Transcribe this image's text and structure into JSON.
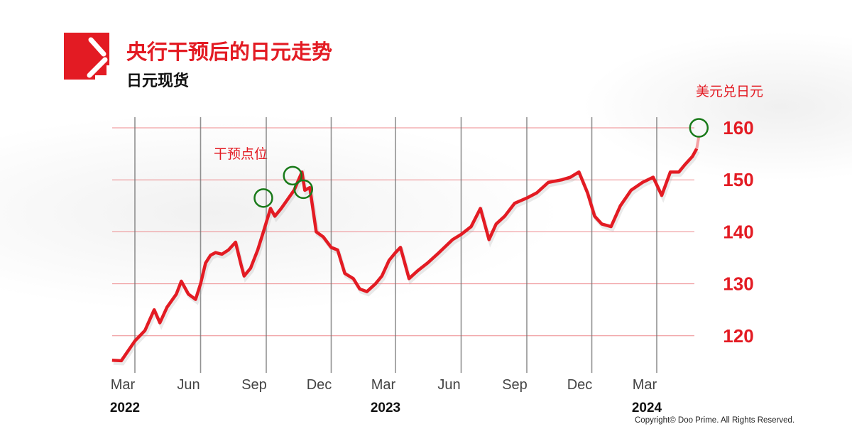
{
  "header": {
    "title": "央行干预后的日元走势",
    "subtitle": "日元现货"
  },
  "footer": {
    "copyright": "Copyright© Doo Prime. All Rights Reserved."
  },
  "colors": {
    "accent": "#e31b23",
    "marker": "#1a7a1a",
    "grid_vertical": "#666666"
  },
  "chart_data": {
    "type": "line",
    "title": "央行干预后的日元走势",
    "subtitle": "日元现货",
    "ylabel": "美元兑日元",
    "annotation": "干预点位",
    "ylim": [
      114,
      162
    ],
    "yticks": [
      120,
      130,
      140,
      150,
      160
    ],
    "xticks": [
      {
        "date": "2022-03-01",
        "label": "Mar"
      },
      {
        "date": "2022-06-01",
        "label": "Jun"
      },
      {
        "date": "2022-09-01",
        "label": "Sep"
      },
      {
        "date": "2022-12-01",
        "label": "Dec"
      },
      {
        "date": "2023-03-01",
        "label": "Mar"
      },
      {
        "date": "2023-06-01",
        "label": "Jun"
      },
      {
        "date": "2023-09-01",
        "label": "Sep"
      },
      {
        "date": "2023-12-01",
        "label": "Dec"
      },
      {
        "date": "2024-03-01",
        "label": "Mar"
      }
    ],
    "years": [
      {
        "date": "2022-03-01",
        "label": "2022"
      },
      {
        "date": "2023-03-01",
        "label": "2023"
      },
      {
        "date": "2024-03-01",
        "label": "2024"
      }
    ],
    "grid": true,
    "series": [
      {
        "x": [
          "2022-01-28",
          "2022-02-10",
          "2022-03-01",
          "2022-03-15",
          "2022-03-28",
          "2022-04-05",
          "2022-04-15",
          "2022-04-28",
          "2022-05-05",
          "2022-05-15",
          "2022-05-25",
          "2022-06-01",
          "2022-06-08",
          "2022-06-15",
          "2022-06-22",
          "2022-07-01",
          "2022-07-10",
          "2022-07-20",
          "2022-07-28",
          "2022-08-01",
          "2022-08-10",
          "2022-08-20",
          "2022-08-28",
          "2022-09-07",
          "2022-09-13",
          "2022-09-22",
          "2022-10-10",
          "2022-10-21",
          "2022-10-25",
          "2022-11-01",
          "2022-11-10",
          "2022-11-20",
          "2022-12-01",
          "2022-12-10",
          "2022-12-20",
          "2023-01-01",
          "2023-01-10",
          "2023-01-20",
          "2023-02-01",
          "2023-02-10",
          "2023-02-20",
          "2023-03-01",
          "2023-03-08",
          "2023-03-20",
          "2023-04-01",
          "2023-04-15",
          "2023-05-01",
          "2023-05-20",
          "2023-06-01",
          "2023-06-15",
          "2023-06-28",
          "2023-07-10",
          "2023-07-20",
          "2023-08-01",
          "2023-08-15",
          "2023-09-01",
          "2023-09-15",
          "2023-10-01",
          "2023-10-20",
          "2023-11-01",
          "2023-11-13",
          "2023-11-25",
          "2023-12-05",
          "2023-12-15",
          "2023-12-28",
          "2024-01-10",
          "2024-01-25",
          "2024-02-10",
          "2024-02-25",
          "2024-03-08",
          "2024-03-20",
          "2024-04-01",
          "2024-04-10",
          "2024-04-20",
          "2024-04-26"
        ],
        "y": [
          115.3,
          115.2,
          119,
          121,
          125,
          122.5,
          125.5,
          128,
          130.5,
          128,
          127,
          130,
          134,
          135.5,
          136,
          135.7,
          136.5,
          138,
          133.5,
          131.5,
          133,
          136.5,
          140,
          144.5,
          143,
          144.5,
          148,
          151.5,
          148,
          148.5,
          140,
          139,
          137,
          136.5,
          132,
          131,
          129,
          128.5,
          130,
          131.5,
          134.5,
          136,
          137,
          131,
          132.5,
          134,
          136,
          138.5,
          139.5,
          141,
          144.5,
          138.5,
          141.5,
          143,
          145.5,
          146.5,
          147.5,
          149.5,
          150,
          150.5,
          151.5,
          147.5,
          143,
          141.5,
          141,
          145,
          148,
          149.5,
          150.5,
          147,
          151.5,
          151.5,
          153,
          154.5,
          156
        ]
      }
    ],
    "intervention_points": [
      {
        "date": "2022-08-28",
        "value": 146.5
      },
      {
        "date": "2022-10-08",
        "value": 150.8
      },
      {
        "date": "2022-10-23",
        "value": 148.2
      },
      {
        "date": "2024-04-29",
        "value": 160
      }
    ]
  }
}
